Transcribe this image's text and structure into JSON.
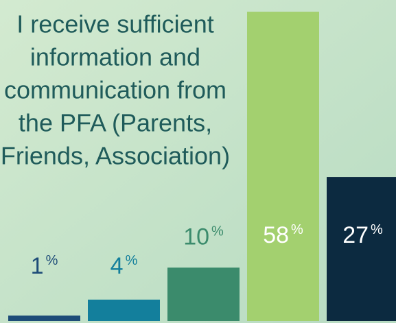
{
  "chart_data": {
    "type": "bar",
    "title": [
      "I receive sufficient",
      "information and",
      "communication from",
      "the PFA (Parents,",
      "Friends, Association)"
    ],
    "categories": [
      null,
      null,
      null,
      null,
      null
    ],
    "values": [
      1,
      4,
      10,
      58,
      27
    ],
    "value_labels": [
      "1%",
      "4%",
      "10%",
      "58%",
      "27%"
    ],
    "colors": [
      "#1d4c78",
      "#137f9c",
      "#3b8b6c",
      "#a3d06f",
      "#0c2a40"
    ],
    "ylim": [
      0,
      60
    ]
  }
}
